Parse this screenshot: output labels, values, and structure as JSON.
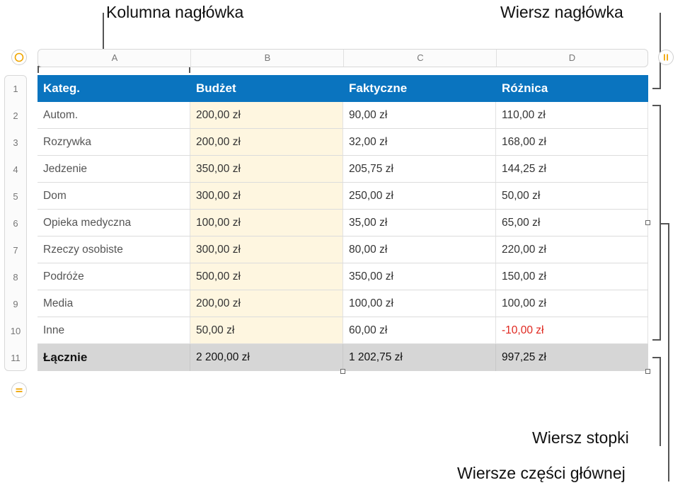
{
  "callouts": {
    "header_column": "Kolumna nagłówka",
    "header_row": "Wiersz nagłówka",
    "footer_row": "Wiersz stopki",
    "body_rows": "Wiersze części głównej"
  },
  "columns": [
    "A",
    "B",
    "C",
    "D"
  ],
  "row_numbers": [
    "1",
    "2",
    "3",
    "4",
    "5",
    "6",
    "7",
    "8",
    "9",
    "10",
    "11"
  ],
  "table": {
    "header": [
      "Kateg.",
      "Budżet",
      "Faktyczne",
      "Różnica"
    ],
    "rows": [
      [
        "Autom.",
        "200,00 zł",
        "90,00 zł",
        "110,00 zł"
      ],
      [
        "Rozrywka",
        "200,00 zł",
        "32,00 zł",
        "168,00 zł"
      ],
      [
        "Jedzenie",
        "350,00 zł",
        "205,75 zł",
        "144,25 zł"
      ],
      [
        "Dom",
        "300,00 zł",
        "250,00 zł",
        "50,00 zł"
      ],
      [
        "Opieka medyczna",
        "100,00 zł",
        "35,00 zł",
        "65,00 zł"
      ],
      [
        "Rzeczy osobiste",
        "300,00 zł",
        "80,00 zł",
        "220,00 zł"
      ],
      [
        "Podróże",
        "500,00 zł",
        "350,00 zł",
        "150,00 zł"
      ],
      [
        "Media",
        "200,00 zł",
        "100,00 zł",
        "100,00 zł"
      ],
      [
        "Inne",
        "50,00 zł",
        "60,00 zł",
        "-10,00 zł"
      ]
    ],
    "footer": [
      "Łącznie",
      "2 200,00 zł",
      "1 202,75 zł",
      "997,25 zł"
    ]
  },
  "colors": {
    "header_bg": "#0a74bf",
    "budget_bg": "#fef6e0",
    "footer_bg": "#d6d6d6",
    "negative": "#e0271f",
    "accent_button": "#f0a500"
  },
  "icons": {
    "select_table": "circle-select-icon",
    "pause_columns": "pause-icon",
    "add_rows": "equals-icon"
  }
}
